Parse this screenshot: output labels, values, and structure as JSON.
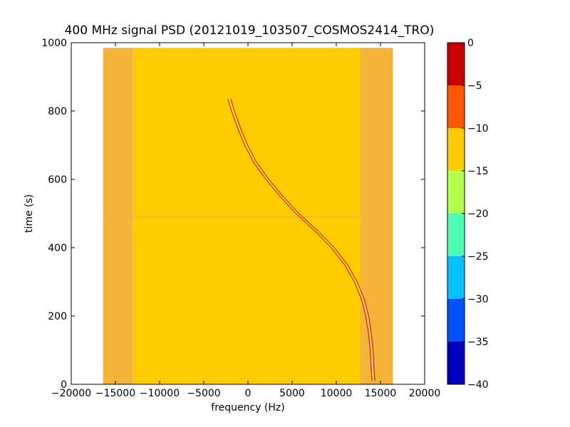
{
  "chart_data": {
    "type": "heatmap",
    "title": "400 MHz signal PSD (20121019_103507_COSMOS2414_TRO)",
    "xlabel": "frequency (Hz)",
    "ylabel": "time (s)",
    "xlim": [
      -20000,
      20000
    ],
    "ylim": [
      0,
      1000
    ],
    "xticks": [
      -20000,
      -15000,
      -10000,
      -5000,
      0,
      5000,
      10000,
      15000,
      20000
    ],
    "xtick_labels": [
      "−20000",
      "−15000",
      "−10000",
      "−5000",
      "0",
      "5000",
      "10000",
      "15000",
      "20000"
    ],
    "yticks": [
      0,
      200,
      400,
      600,
      800,
      1000
    ],
    "ytick_labels": [
      "0",
      "200",
      "400",
      "600",
      "800",
      "1000"
    ],
    "data_extent": {
      "freq": [
        -16400,
        16400
      ],
      "time": [
        0,
        985
      ]
    },
    "regions": [
      {
        "freq": [
          -16400,
          -13000
        ],
        "level": -12,
        "color": "#f6b33a"
      },
      {
        "freq": [
          -13000,
          12700
        ],
        "level": -11,
        "color": "#ffcc00"
      },
      {
        "freq": [
          12700,
          16400
        ],
        "level": -12,
        "color": "#f6b33a"
      }
    ],
    "signal_trace": {
      "color": "#cc1111",
      "points": [
        {
          "time": 835,
          "freq": -2100
        },
        {
          "time": 800,
          "freq": -1700
        },
        {
          "time": 750,
          "freq": -1000
        },
        {
          "time": 700,
          "freq": -200
        },
        {
          "time": 650,
          "freq": 800
        },
        {
          "time": 600,
          "freq": 2200
        },
        {
          "time": 550,
          "freq": 3800
        },
        {
          "time": 500,
          "freq": 5600
        },
        {
          "time": 450,
          "freq": 7700
        },
        {
          "time": 400,
          "freq": 9600
        },
        {
          "time": 350,
          "freq": 11100
        },
        {
          "time": 300,
          "freq": 12200
        },
        {
          "time": 250,
          "freq": 13000
        },
        {
          "time": 200,
          "freq": 13500
        },
        {
          "time": 150,
          "freq": 13800
        },
        {
          "time": 100,
          "freq": 14000
        },
        {
          "time": 50,
          "freq": 14100
        },
        {
          "time": 10,
          "freq": 14200
        }
      ]
    },
    "colorbar": {
      "range": [
        -40,
        0
      ],
      "tick_values": [
        0,
        -5,
        -10,
        -15,
        -20,
        -25,
        -30,
        -35,
        -40
      ],
      "tick_labels": [
        "0",
        "−5",
        "−10",
        "−15",
        "−20",
        "−25",
        "−30",
        "−35",
        "−40"
      ],
      "bands": [
        {
          "from": -5,
          "to": 0,
          "color": "#c80000"
        },
        {
          "from": -10,
          "to": -5,
          "color": "#ff5a00"
        },
        {
          "from": -15,
          "to": -10,
          "color": "#ffcc00"
        },
        {
          "from": -20,
          "to": -15,
          "color": "#b2ff4c"
        },
        {
          "from": -25,
          "to": -20,
          "color": "#4cffb2"
        },
        {
          "from": -30,
          "to": -25,
          "color": "#00c0ff"
        },
        {
          "from": -35,
          "to": -30,
          "color": "#0050ff"
        },
        {
          "from": -40,
          "to": -35,
          "color": "#0000c0"
        }
      ]
    }
  }
}
